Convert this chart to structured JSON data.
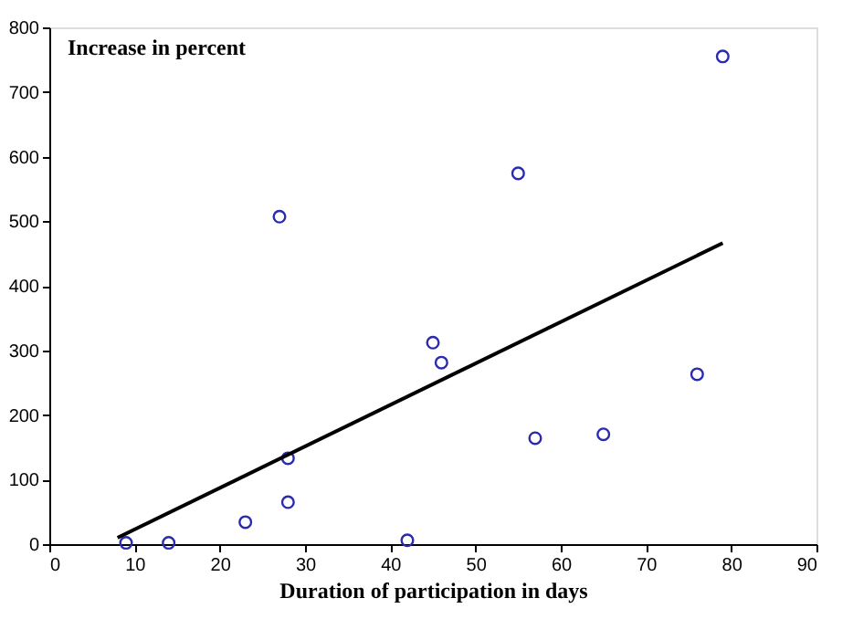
{
  "chart_data": {
    "type": "scatter",
    "xlabel": "Duration of participation in days",
    "ylabel": "Increase in percent",
    "xlim": [
      0,
      90
    ],
    "xticks": [
      0,
      10,
      20,
      30,
      40,
      50,
      60,
      70,
      80,
      90
    ],
    "ylim": [
      0,
      800
    ],
    "yticks": [
      0,
      100,
      200,
      300,
      400,
      500,
      600,
      700,
      800
    ],
    "grid": false,
    "marker": "circle",
    "legend": false,
    "series": [
      {
        "color": "#2b2bb0",
        "x": [
          9,
          14,
          23,
          27,
          28,
          28,
          42,
          45,
          46,
          55,
          57,
          65,
          76,
          79
        ],
        "values": [
          2,
          2,
          34,
          507,
          133,
          65,
          6,
          312,
          281,
          574,
          164,
          170,
          263,
          755
        ]
      },
      {
        "type": "line",
        "color": "#000000",
        "line_style": "solid",
        "marker": "none",
        "x": [
          8,
          79
        ],
        "values": [
          10,
          466
        ]
      }
    ]
  }
}
